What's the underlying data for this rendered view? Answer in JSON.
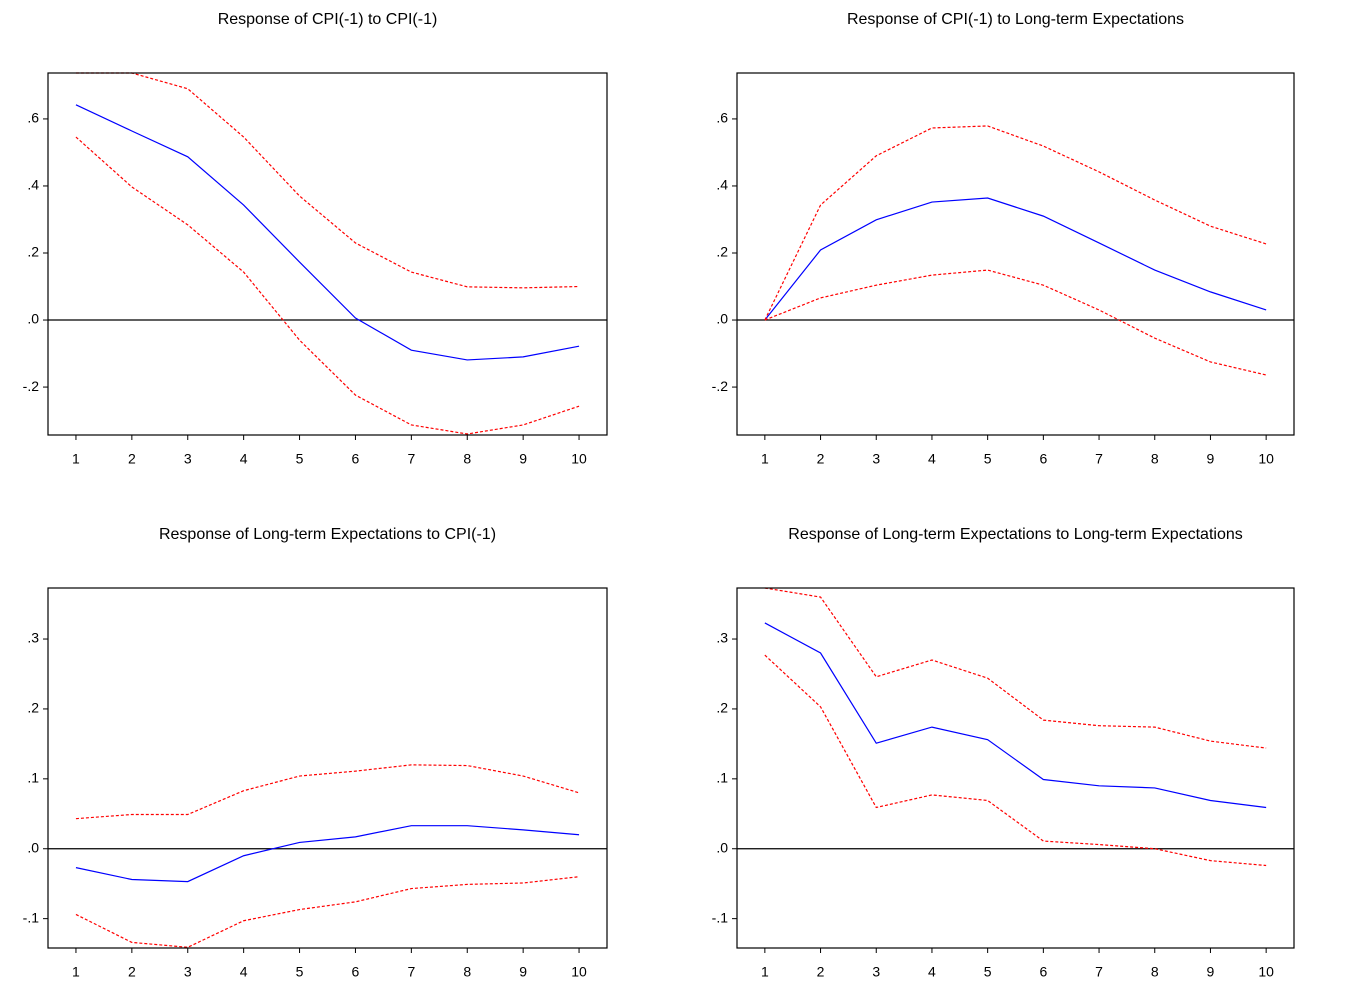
{
  "chart_data": [
    {
      "type": "line",
      "title": "Response of CPI(-1) to CPI(-1)",
      "x": [
        1,
        2,
        3,
        4,
        5,
        6,
        7,
        8,
        9,
        10
      ],
      "xlim": [
        0.5,
        10.5
      ],
      "xticks": [
        1,
        2,
        3,
        4,
        5,
        6,
        7,
        8,
        9,
        10
      ],
      "ylim": [
        -0.343,
        0.737
      ],
      "yticks": [
        {
          "value": -0.2,
          "label": "-.2"
        },
        {
          "value": 0,
          "label": ".0"
        },
        {
          "value": 0.2,
          "label": ".2"
        },
        {
          "value": 0.4,
          "label": ".4"
        },
        {
          "value": 0.6,
          "label": ".6"
        }
      ],
      "hline": 0,
      "series": [
        {
          "color": "#0000ff",
          "dashed": false,
          "values": [
            0.642,
            0.564,
            0.487,
            0.343,
            0.173,
            0.006,
            -0.09,
            -0.119,
            -0.11,
            -0.078
          ]
        },
        {
          "color": "#ff0000",
          "dashed": true,
          "values": [
            0.737,
            0.737,
            0.69,
            0.546,
            0.37,
            0.23,
            0.143,
            0.099,
            0.096,
            0.1
          ]
        },
        {
          "color": "#ff0000",
          "dashed": true,
          "values": [
            0.546,
            0.397,
            0.284,
            0.143,
            -0.06,
            -0.224,
            -0.313,
            -0.34,
            -0.313,
            -0.257
          ]
        }
      ]
    },
    {
      "type": "line",
      "title": "Response of CPI(-1) to Long-term Expectations",
      "x": [
        1,
        2,
        3,
        4,
        5,
        6,
        7,
        8,
        9,
        10
      ],
      "xlim": [
        0.5,
        10.5
      ],
      "xticks": [
        1,
        2,
        3,
        4,
        5,
        6,
        7,
        8,
        9,
        10
      ],
      "ylim": [
        -0.343,
        0.737
      ],
      "yticks": [
        {
          "value": -0.2,
          "label": "-.2"
        },
        {
          "value": 0,
          "label": ".0"
        },
        {
          "value": 0.2,
          "label": ".2"
        },
        {
          "value": 0.4,
          "label": ".4"
        },
        {
          "value": 0.6,
          "label": ".6"
        }
      ],
      "hline": 0,
      "series": [
        {
          "color": "#0000ff",
          "dashed": false,
          "values": [
            0,
            0.209,
            0.299,
            0.352,
            0.364,
            0.31,
            0.23,
            0.149,
            0.084,
            0.03
          ]
        },
        {
          "color": "#ff0000",
          "dashed": true,
          "values": [
            0,
            0.343,
            0.49,
            0.573,
            0.579,
            0.519,
            0.442,
            0.358,
            0.28,
            0.227
          ]
        },
        {
          "color": "#ff0000",
          "dashed": true,
          "values": [
            0,
            0.066,
            0.104,
            0.134,
            0.149,
            0.104,
            0.03,
            -0.054,
            -0.125,
            -0.164
          ]
        }
      ]
    },
    {
      "type": "line",
      "title": "Response of Long-term Expectations to CPI(-1)",
      "x": [
        1,
        2,
        3,
        4,
        5,
        6,
        7,
        8,
        9,
        10
      ],
      "xlim": [
        0.5,
        10.5
      ],
      "xticks": [
        1,
        2,
        3,
        4,
        5,
        6,
        7,
        8,
        9,
        10
      ],
      "ylim": [
        -0.142,
        0.373
      ],
      "yticks": [
        {
          "value": -0.1,
          "label": "-.1"
        },
        {
          "value": 0,
          "label": ".0"
        },
        {
          "value": 0.1,
          "label": ".1"
        },
        {
          "value": 0.2,
          "label": ".2"
        },
        {
          "value": 0.3,
          "label": ".3"
        }
      ],
      "hline": 0,
      "series": [
        {
          "color": "#0000ff",
          "dashed": false,
          "values": [
            -0.027,
            -0.044,
            -0.047,
            -0.01,
            0.009,
            0.017,
            0.033,
            0.033,
            0.027,
            0.02
          ]
        },
        {
          "color": "#ff0000",
          "dashed": true,
          "values": [
            0.043,
            0.049,
            0.049,
            0.083,
            0.104,
            0.111,
            0.12,
            0.119,
            0.104,
            0.08
          ]
        },
        {
          "color": "#ff0000",
          "dashed": true,
          "values": [
            -0.094,
            -0.134,
            -0.141,
            -0.103,
            -0.087,
            -0.076,
            -0.057,
            -0.051,
            -0.049,
            -0.04
          ]
        }
      ]
    },
    {
      "type": "line",
      "title": "Response of Long-term Expectations to Long-term Expectations",
      "x": [
        1,
        2,
        3,
        4,
        5,
        6,
        7,
        8,
        9,
        10
      ],
      "xlim": [
        0.5,
        10.5
      ],
      "xticks": [
        1,
        2,
        3,
        4,
        5,
        6,
        7,
        8,
        9,
        10
      ],
      "ylim": [
        -0.142,
        0.373
      ],
      "yticks": [
        {
          "value": -0.1,
          "label": "-.1"
        },
        {
          "value": 0,
          "label": ".0"
        },
        {
          "value": 0.1,
          "label": ".1"
        },
        {
          "value": 0.2,
          "label": ".2"
        },
        {
          "value": 0.3,
          "label": ".3"
        }
      ],
      "hline": 0,
      "series": [
        {
          "color": "#0000ff",
          "dashed": false,
          "values": [
            0.323,
            0.28,
            0.151,
            0.174,
            0.156,
            0.099,
            0.09,
            0.087,
            0.069,
            0.059
          ]
        },
        {
          "color": "#ff0000",
          "dashed": true,
          "values": [
            0.373,
            0.36,
            0.246,
            0.27,
            0.244,
            0.184,
            0.176,
            0.174,
            0.154,
            0.144
          ]
        },
        {
          "color": "#ff0000",
          "dashed": true,
          "values": [
            0.277,
            0.203,
            0.059,
            0.077,
            0.069,
            0.011,
            0.006,
            0,
            -0.017,
            -0.024
          ]
        }
      ]
    }
  ]
}
